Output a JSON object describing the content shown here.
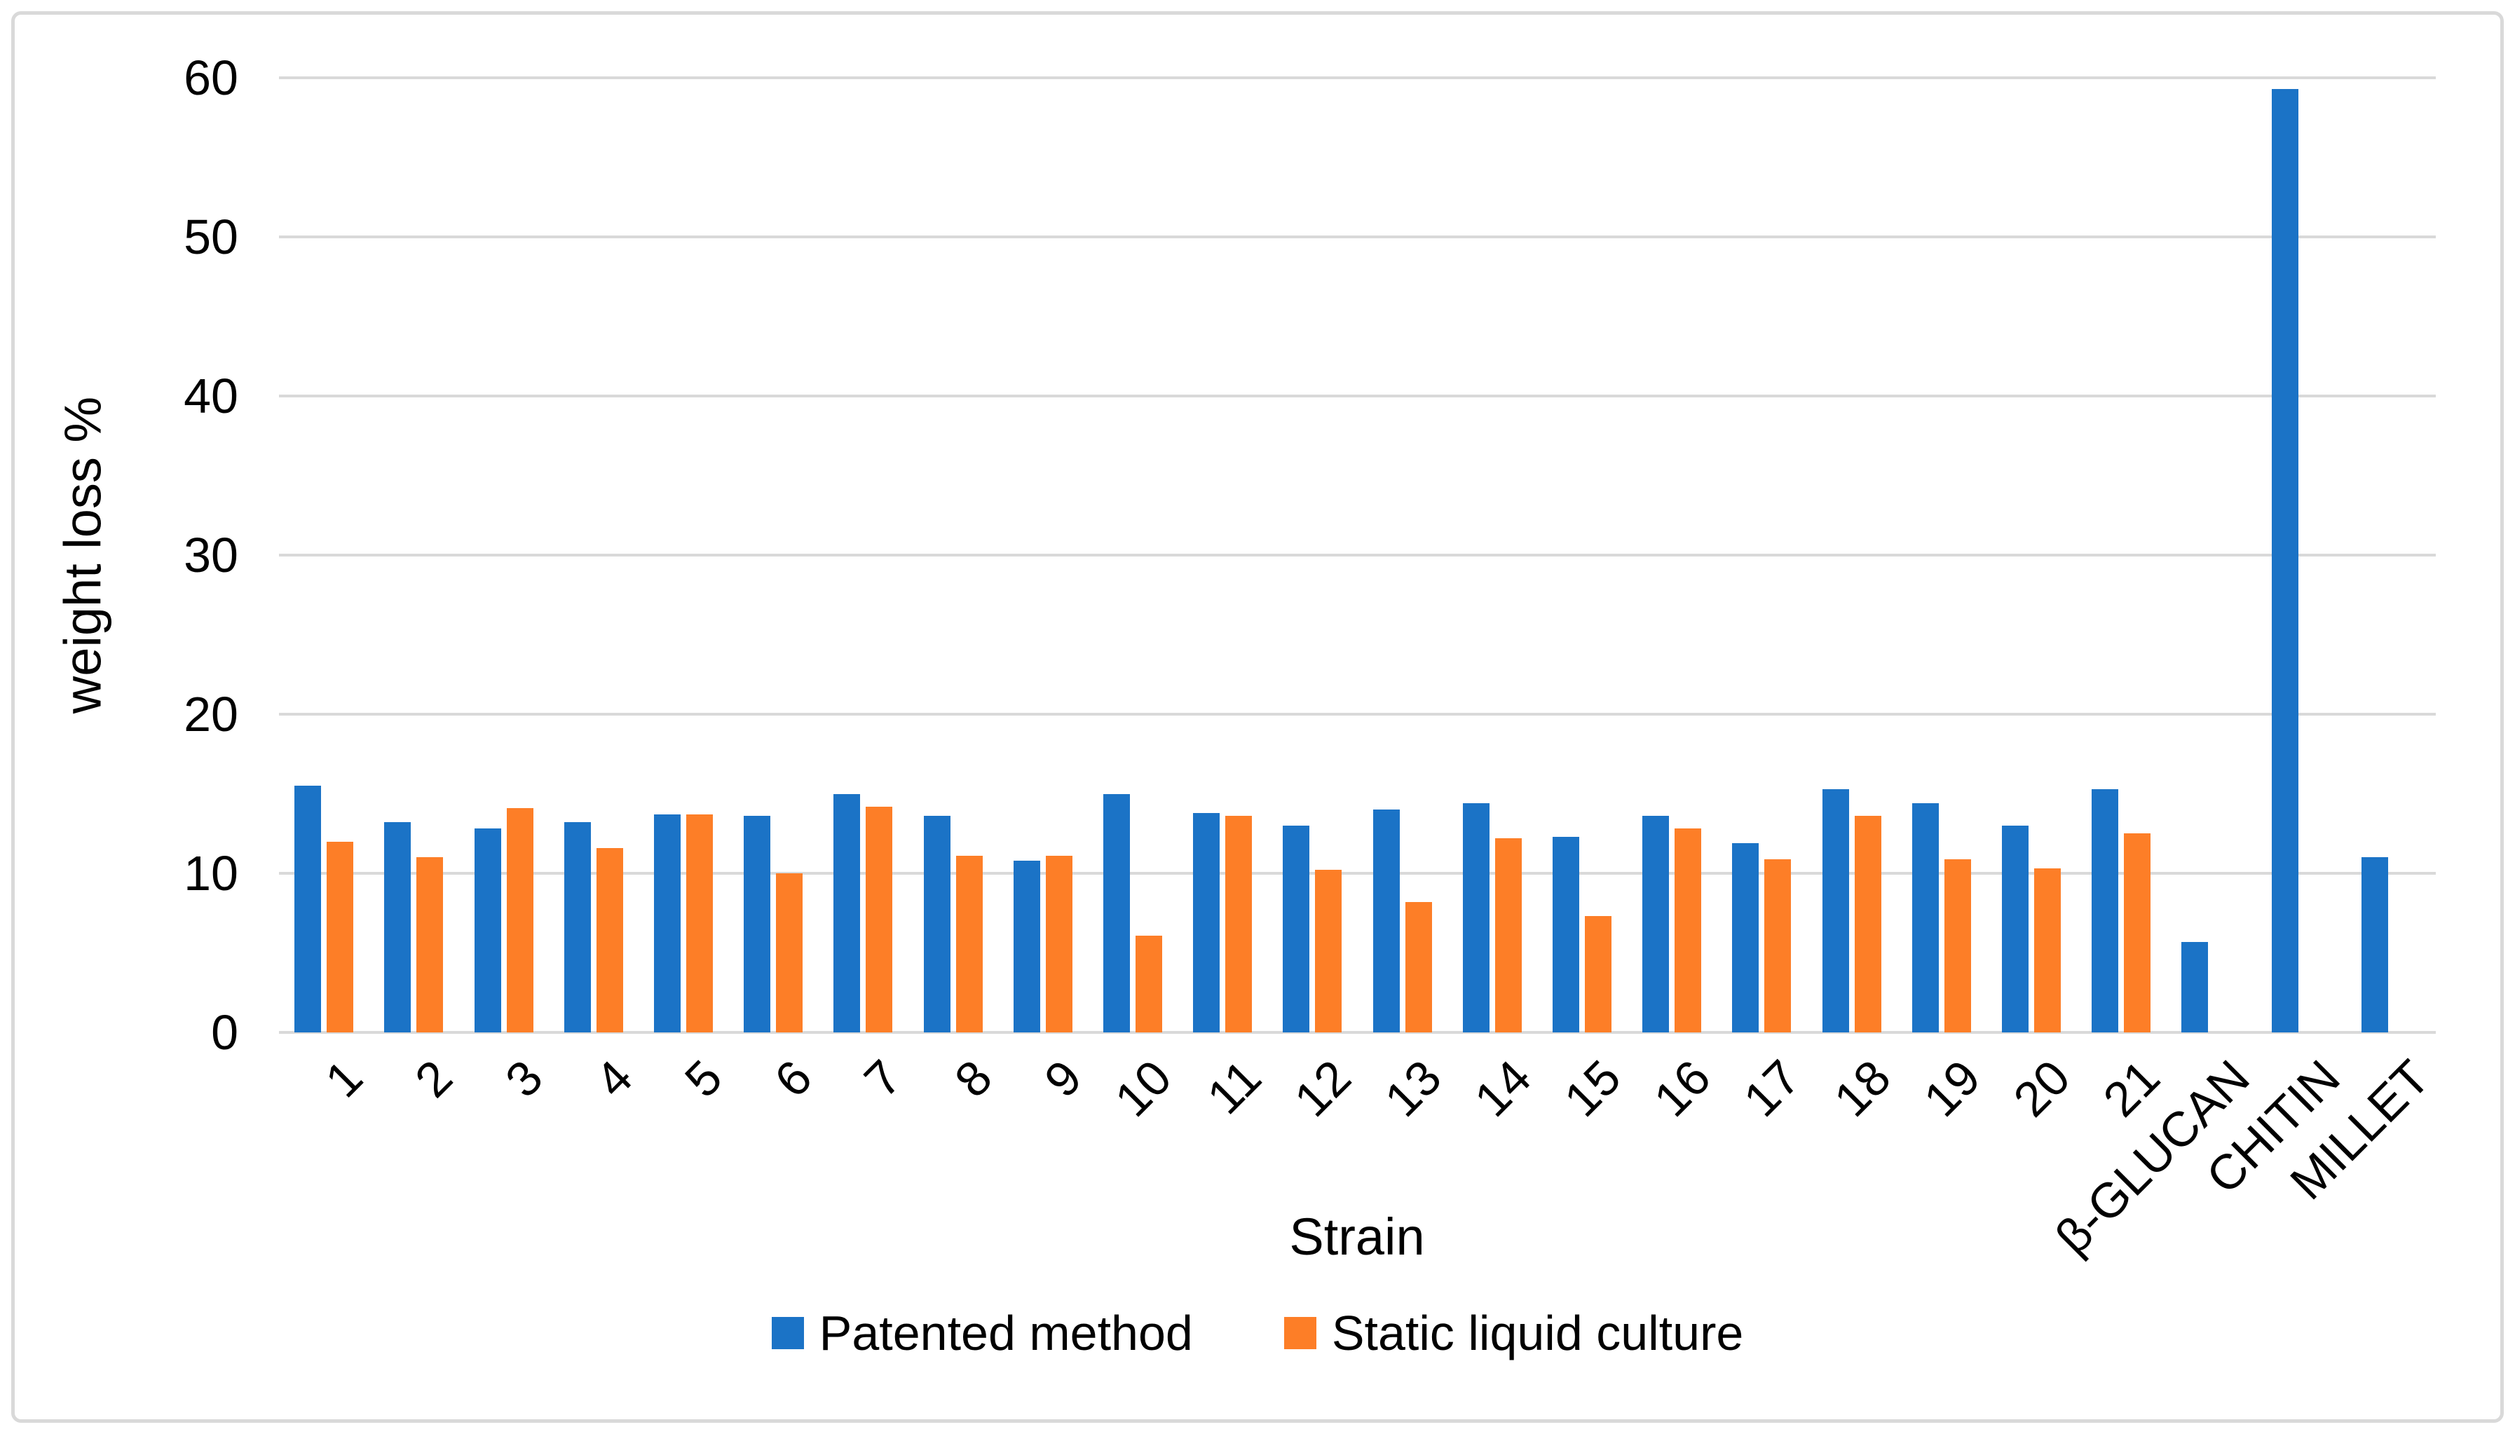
{
  "figure": {
    "background": "#FFFFFF",
    "border_color": "#D9D9D9"
  },
  "chart_data": {
    "type": "bar",
    "title": "",
    "xlabel": "Strain",
    "ylabel": "weight loss %",
    "ylim": [
      0,
      60
    ],
    "ytick_interval": 10,
    "yticks": [
      "0",
      "10",
      "20",
      "30",
      "40",
      "50",
      "60"
    ],
    "grid": "horizontal",
    "gridline_color": "#D9D9D9",
    "legend_position": "bottom",
    "categories": [
      "1",
      "2",
      "3",
      "4",
      "5",
      "6",
      "7",
      "8",
      "9",
      "10",
      "11",
      "12",
      "13",
      "14",
      "15",
      "16",
      "17",
      "18",
      "19",
      "20",
      "21",
      "β-GLUCAN",
      "CHITIN",
      "MILLET"
    ],
    "series": [
      {
        "name": "Patented method",
        "color": "#1B73C6",
        "values": [
          15.5,
          13.2,
          12.8,
          13.2,
          13.7,
          13.6,
          15.0,
          13.6,
          10.8,
          15.0,
          13.8,
          13.0,
          14.0,
          14.4,
          12.3,
          13.6,
          11.9,
          15.3,
          14.4,
          13.0,
          15.3,
          5.7,
          59.3,
          11.0
        ]
      },
      {
        "name": "Static liquid culture",
        "color": "#FD7E27",
        "values": [
          12.0,
          11.0,
          14.1,
          11.6,
          13.7,
          10.0,
          14.2,
          11.1,
          11.1,
          6.1,
          13.6,
          10.2,
          8.2,
          12.2,
          7.3,
          12.8,
          10.9,
          13.6,
          10.9,
          10.3,
          12.5,
          null,
          null,
          null
        ]
      }
    ]
  }
}
